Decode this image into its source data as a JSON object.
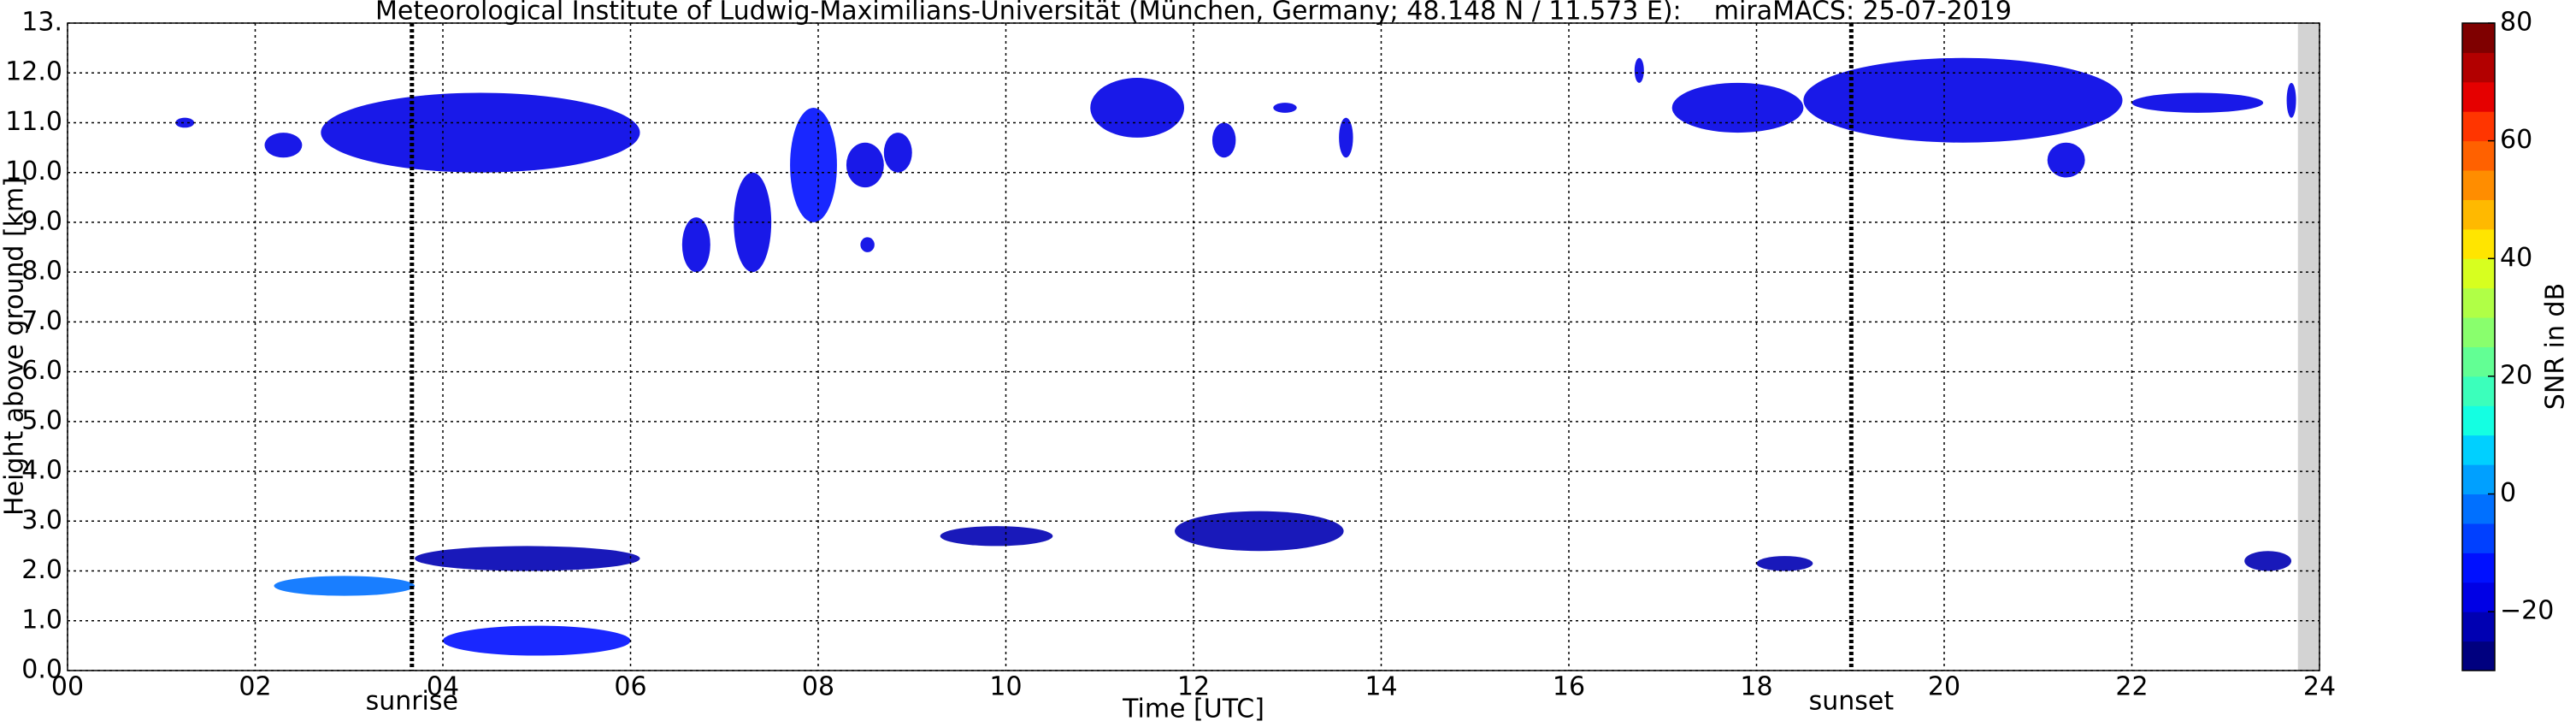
{
  "chart_data": {
    "type": "time-height",
    "title": "Meteorological Institute of Ludwig-Maximilians-Universität (München, Germany; 48.148 N / 11.573 E):    miraMACS: 25-07-2019",
    "x_label": "Time [UTC]",
    "y_label": "Height above ground [km]",
    "colorbar_label": "SNR in dB",
    "xlim": [
      0,
      24
    ],
    "xticks": [
      {
        "value": 0,
        "label": "00"
      },
      {
        "value": 2,
        "label": "02"
      },
      {
        "value": 4,
        "label": "04"
      },
      {
        "value": 6,
        "label": "06"
      },
      {
        "value": 8,
        "label": "08"
      },
      10,
      12,
      14,
      16,
      18,
      20,
      22,
      24
    ],
    "ylim": [
      0,
      13
    ],
    "yticks": [
      {
        "value": 0,
        "label": "0.0"
      },
      {
        "value": 1,
        "label": "1.0"
      },
      {
        "value": 2,
        "label": "2.0"
      },
      {
        "value": 3,
        "label": "3.0"
      },
      {
        "value": 4,
        "label": "4.0"
      },
      {
        "value": 5,
        "label": "5.0"
      },
      {
        "value": 6,
        "label": "6.0"
      },
      {
        "value": 7,
        "label": "7.0"
      },
      {
        "value": 8,
        "label": "8.0"
      },
      {
        "value": 9,
        "label": "9.0"
      },
      {
        "value": 10,
        "label": "10.0"
      },
      {
        "value": 11,
        "label": "11.0"
      },
      {
        "value": 12,
        "label": "12.0"
      },
      {
        "value": 13,
        "label": "13."
      }
    ],
    "grid": true,
    "clim": [
      -30,
      80
    ],
    "cticks": [
      {
        "value": -20,
        "label": "−20"
      },
      0,
      20,
      40,
      60,
      80
    ],
    "colormap": [
      "#00007f",
      "#0000b2",
      "#0000e5",
      "#0010ff",
      "#0040ff",
      "#0070ff",
      "#00a0ff",
      "#00d0ff",
      "#14ffe2",
      "#3bffbb",
      "#62ff94",
      "#89ff6d",
      "#b0ff46",
      "#d7ff1f",
      "#ffe500",
      "#ffb900",
      "#ff8d00",
      "#ff6100",
      "#ff3500",
      "#e50000",
      "#b20000",
      "#7f0000"
    ],
    "no_data_from": 23.77,
    "markers": [
      {
        "label": "sunrise",
        "time": 3.67
      },
      {
        "label": "sunset",
        "time": 19.01
      }
    ],
    "echoes": [
      {
        "start": 1.15,
        "end": 1.35,
        "base": 10.9,
        "top": 11.1,
        "snr": -18
      },
      {
        "start": 2.1,
        "end": 2.5,
        "base": 10.3,
        "top": 10.8,
        "snr": -18
      },
      {
        "start": 2.7,
        "end": 6.1,
        "base": 10.0,
        "top": 11.6,
        "snr": -18
      },
      {
        "start": 6.55,
        "end": 6.85,
        "base": 8.0,
        "top": 9.1,
        "snr": -18
      },
      {
        "start": 7.1,
        "end": 7.5,
        "base": 8.0,
        "top": 10.0,
        "snr": -18
      },
      {
        "start": 7.7,
        "end": 8.2,
        "base": 9.0,
        "top": 11.3,
        "snr": -12
      },
      {
        "start": 8.3,
        "end": 8.7,
        "base": 9.7,
        "top": 10.6,
        "snr": -18
      },
      {
        "start": 8.7,
        "end": 9.0,
        "base": 10.0,
        "top": 10.8,
        "snr": -18
      },
      {
        "start": 8.45,
        "end": 8.6,
        "base": 8.4,
        "top": 8.7,
        "snr": -18
      },
      {
        "start": 10.9,
        "end": 11.9,
        "base": 10.7,
        "top": 11.9,
        "snr": -18
      },
      {
        "start": 12.2,
        "end": 12.45,
        "base": 10.3,
        "top": 11.0,
        "snr": -18
      },
      {
        "start": 12.85,
        "end": 13.1,
        "base": 11.2,
        "top": 11.4,
        "snr": -18
      },
      {
        "start": 13.55,
        "end": 13.7,
        "base": 10.3,
        "top": 11.1,
        "snr": -18
      },
      {
        "start": 16.7,
        "end": 16.8,
        "base": 11.8,
        "top": 12.3,
        "snr": -18
      },
      {
        "start": 17.1,
        "end": 18.5,
        "base": 10.8,
        "top": 11.8,
        "snr": -18
      },
      {
        "start": 18.5,
        "end": 21.9,
        "base": 10.6,
        "top": 12.3,
        "snr": -18
      },
      {
        "start": 21.1,
        "end": 21.5,
        "base": 9.9,
        "top": 10.6,
        "snr": -18
      },
      {
        "start": 22.0,
        "end": 23.4,
        "base": 11.2,
        "top": 11.6,
        "snr": -18
      },
      {
        "start": 23.65,
        "end": 23.75,
        "base": 11.1,
        "top": 11.8,
        "snr": -18
      },
      {
        "start": 2.2,
        "end": 3.7,
        "base": 1.5,
        "top": 1.9,
        "snr": -5
      },
      {
        "start": 3.7,
        "end": 6.1,
        "base": 2.0,
        "top": 2.5,
        "snr": -22
      },
      {
        "start": 4.0,
        "end": 6.0,
        "base": 0.3,
        "top": 0.9,
        "snr": -12
      },
      {
        "start": 9.3,
        "end": 10.5,
        "base": 2.5,
        "top": 2.9,
        "snr": -22
      },
      {
        "start": 11.8,
        "end": 13.6,
        "base": 2.4,
        "top": 3.2,
        "snr": -22
      },
      {
        "start": 18.0,
        "end": 18.6,
        "base": 2.0,
        "top": 2.3,
        "snr": -22
      },
      {
        "start": 23.2,
        "end": 23.7,
        "base": 2.0,
        "top": 2.4,
        "snr": -22
      }
    ]
  }
}
